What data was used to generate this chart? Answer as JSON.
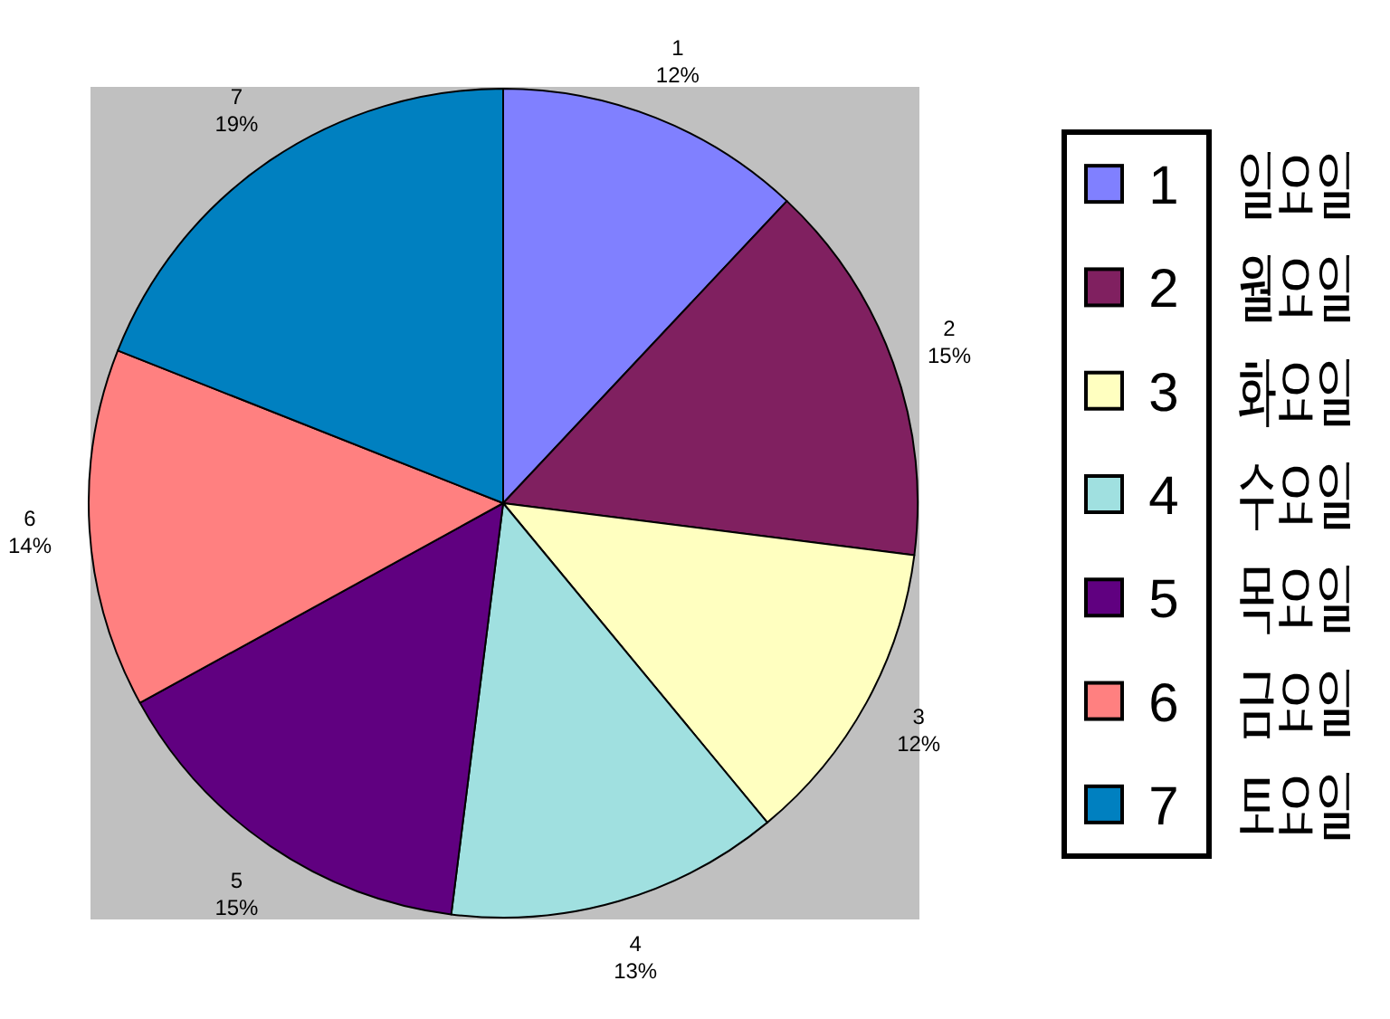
{
  "chart_data": {
    "type": "pie",
    "categories": [
      "1",
      "2",
      "3",
      "4",
      "5",
      "6",
      "7"
    ],
    "values": [
      12,
      15,
      12,
      13,
      15,
      14,
      19
    ],
    "colors": [
      "#8080ff",
      "#802060",
      "#ffffc0",
      "#a0e0e0",
      "#600080",
      "#ff8080",
      "#0080c0"
    ],
    "value_labels": [
      "12%",
      "15%",
      "12%",
      "13%",
      "15%",
      "14%",
      "19%"
    ],
    "legend": "right",
    "annotations": [
      "일요일",
      "월요일",
      "화요일",
      "수요일",
      "목요일",
      "금요일",
      "토요일"
    ]
  }
}
